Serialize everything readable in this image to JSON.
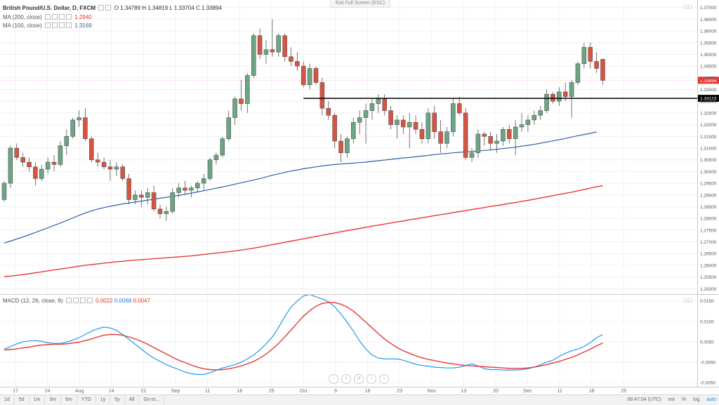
{
  "header": {
    "exit_fullscreen": "Exit Full Screen (ESC)",
    "symbol": "British Pound/U.S. Dollar, D, FXCM",
    "ohlc": {
      "open": "O 1.34789",
      "high": "H 1.34819",
      "low": "L 1.33704",
      "close": "C 1.33894"
    },
    "ma200": {
      "label": "MA (200, close)",
      "value": "1.2940"
    },
    "ma100": {
      "label": "MA (100, close)",
      "value": "1.3169"
    },
    "macd": {
      "label": "MACD (12, 26, close, 9)",
      "hist": "0.0022",
      "macd": "0.0068",
      "signal": "0.0047"
    }
  },
  "colors": {
    "up": "#6ba583",
    "down": "#d75442",
    "ma100": "#2f5fa8",
    "ma200": "#e53935",
    "macd": "#1e9af0",
    "signal": "#e53935",
    "hline": "#000000",
    "price_tag": "#e53935"
  },
  "price_axis": {
    "labels": [
      "1.37000",
      "1.36500",
      "1.36000",
      "1.35500",
      "1.35000",
      "1.34500",
      "1.34000",
      "1.33500",
      "1.33000",
      "1.32500",
      "1.32000",
      "1.31500",
      "1.31000",
      "1.30500",
      "1.30000",
      "1.29500",
      "1.29000",
      "1.28500",
      "1.28000",
      "1.27500",
      "1.27000",
      "1.26500",
      "1.26000",
      "1.25500",
      "1.25000"
    ],
    "current_price": "1.33894",
    "hline_price": "1.33123"
  },
  "macd_axis": {
    "labels": [
      "0.0150",
      "0.0100",
      "0.0050",
      "-0.0000",
      "-0.0050"
    ]
  },
  "time_axis": [
    "17",
    "24",
    "Aug",
    "14",
    "21",
    "Sep",
    "11",
    "18",
    "25",
    "Oct",
    "9",
    "16",
    "23",
    "Nov",
    "13",
    "20",
    "Dec",
    "11",
    "18",
    "25"
  ],
  "bottom_bar": {
    "timeframes": [
      "1d",
      "5d",
      "1m",
      "3m",
      "6m",
      "YTD",
      "1y",
      "5y",
      "All",
      "Go to..."
    ],
    "clock": "08:47:04 (UTC)",
    "options": [
      "ext",
      "%",
      "log",
      "auto"
    ]
  },
  "chart_data": {
    "type": "candlestick",
    "price_range": [
      1.248,
      1.372
    ],
    "macd_range": [
      -0.006,
      0.0165
    ],
    "hline": {
      "price": 1.33123,
      "start_index": 48
    },
    "candles": [
      [
        1.288,
        1.296,
        1.287,
        1.295
      ],
      [
        1.295,
        1.311,
        1.293,
        1.31
      ],
      [
        1.31,
        1.312,
        1.305,
        1.306
      ],
      [
        1.306,
        1.308,
        1.302,
        1.304
      ],
      [
        1.304,
        1.306,
        1.3,
        1.302
      ],
      [
        1.302,
        1.304,
        1.294,
        1.297
      ],
      [
        1.297,
        1.303,
        1.296,
        1.301
      ],
      [
        1.301,
        1.306,
        1.299,
        1.304
      ],
      [
        1.304,
        1.307,
        1.3,
        1.303
      ],
      [
        1.303,
        1.313,
        1.302,
        1.311
      ],
      [
        1.311,
        1.318,
        1.307,
        1.315
      ],
      [
        1.315,
        1.323,
        1.314,
        1.322
      ],
      [
        1.322,
        1.326,
        1.319,
        1.323
      ],
      [
        1.323,
        1.327,
        1.313,
        1.314
      ],
      [
        1.314,
        1.315,
        1.304,
        1.305
      ],
      [
        1.305,
        1.308,
        1.302,
        1.304
      ],
      [
        1.304,
        1.306,
        1.301,
        1.302
      ],
      [
        1.302,
        1.305,
        1.296,
        1.301
      ],
      [
        1.301,
        1.304,
        1.298,
        1.302
      ],
      [
        1.302,
        1.303,
        1.296,
        1.297
      ],
      [
        1.297,
        1.299,
        1.286,
        1.288
      ],
      [
        1.288,
        1.292,
        1.286,
        1.29
      ],
      [
        1.29,
        1.292,
        1.285,
        1.289
      ],
      [
        1.289,
        1.293,
        1.286,
        1.291
      ],
      [
        1.291,
        1.294,
        1.283,
        1.284
      ],
      [
        1.284,
        1.286,
        1.28,
        1.282
      ],
      [
        1.282,
        1.285,
        1.279,
        1.283
      ],
      [
        1.283,
        1.293,
        1.282,
        1.291
      ],
      [
        1.291,
        1.295,
        1.289,
        1.293
      ],
      [
        1.293,
        1.296,
        1.29,
        1.292
      ],
      [
        1.292,
        1.294,
        1.289,
        1.293
      ],
      [
        1.293,
        1.296,
        1.291,
        1.295
      ],
      [
        1.295,
        1.299,
        1.292,
        1.297
      ],
      [
        1.297,
        1.306,
        1.296,
        1.305
      ],
      [
        1.305,
        1.308,
        1.303,
        1.307
      ],
      [
        1.307,
        1.315,
        1.306,
        1.314
      ],
      [
        1.314,
        1.326,
        1.313,
        1.323
      ],
      [
        1.323,
        1.332,
        1.32,
        1.331
      ],
      [
        1.331,
        1.339,
        1.326,
        1.329
      ],
      [
        1.329,
        1.342,
        1.325,
        1.341
      ],
      [
        1.341,
        1.359,
        1.34,
        1.358
      ],
      [
        1.358,
        1.361,
        1.348,
        1.35
      ],
      [
        1.35,
        1.356,
        1.346,
        1.352
      ],
      [
        1.352,
        1.365,
        1.349,
        1.351
      ],
      [
        1.351,
        1.359,
        1.349,
        1.358
      ],
      [
        1.358,
        1.359,
        1.347,
        1.349
      ],
      [
        1.349,
        1.353,
        1.345,
        1.347
      ],
      [
        1.347,
        1.351,
        1.343,
        1.345
      ],
      [
        1.345,
        1.347,
        1.336,
        1.337
      ],
      [
        1.337,
        1.346,
        1.335,
        1.344
      ],
      [
        1.344,
        1.345,
        1.337,
        1.338
      ],
      [
        1.338,
        1.34,
        1.324,
        1.327
      ],
      [
        1.327,
        1.33,
        1.322,
        1.324
      ],
      [
        1.324,
        1.325,
        1.31,
        1.313
      ],
      [
        1.313,
        1.316,
        1.304,
        1.308
      ],
      [
        1.308,
        1.315,
        1.306,
        1.314
      ],
      [
        1.314,
        1.323,
        1.312,
        1.321
      ],
      [
        1.321,
        1.326,
        1.316,
        1.323
      ],
      [
        1.323,
        1.329,
        1.312,
        1.326
      ],
      [
        1.326,
        1.331,
        1.322,
        1.329
      ],
      [
        1.329,
        1.333,
        1.325,
        1.331
      ],
      [
        1.331,
        1.333,
        1.324,
        1.326
      ],
      [
        1.326,
        1.328,
        1.318,
        1.32
      ],
      [
        1.32,
        1.324,
        1.314,
        1.322
      ],
      [
        1.322,
        1.324,
        1.316,
        1.319
      ],
      [
        1.319,
        1.325,
        1.31,
        1.321
      ],
      [
        1.321,
        1.324,
        1.316,
        1.318
      ],
      [
        1.318,
        1.321,
        1.312,
        1.314
      ],
      [
        1.314,
        1.327,
        1.312,
        1.325
      ],
      [
        1.325,
        1.328,
        1.314,
        1.317
      ],
      [
        1.317,
        1.322,
        1.308,
        1.312
      ],
      [
        1.312,
        1.319,
        1.31,
        1.317
      ],
      [
        1.317,
        1.331,
        1.315,
        1.329
      ],
      [
        1.329,
        1.332,
        1.324,
        1.325
      ],
      [
        1.325,
        1.327,
        1.305,
        1.306
      ],
      [
        1.306,
        1.31,
        1.304,
        1.308
      ],
      [
        1.308,
        1.318,
        1.306,
        1.316
      ],
      [
        1.316,
        1.317,
        1.311,
        1.315
      ],
      [
        1.315,
        1.317,
        1.309,
        1.312
      ],
      [
        1.312,
        1.316,
        1.308,
        1.313
      ],
      [
        1.313,
        1.319,
        1.311,
        1.318
      ],
      [
        1.318,
        1.32,
        1.312,
        1.314
      ],
      [
        1.314,
        1.322,
        1.307,
        1.319
      ],
      [
        1.319,
        1.325,
        1.317,
        1.32
      ],
      [
        1.32,
        1.324,
        1.317,
        1.322
      ],
      [
        1.322,
        1.326,
        1.32,
        1.324
      ],
      [
        1.324,
        1.328,
        1.322,
        1.326
      ],
      [
        1.326,
        1.335,
        1.325,
        1.333
      ],
      [
        1.333,
        1.334,
        1.329,
        1.33
      ],
      [
        1.33,
        1.336,
        1.328,
        1.334
      ],
      [
        1.334,
        1.338,
        1.33,
        1.332
      ],
      [
        1.332,
        1.339,
        1.323,
        1.338
      ],
      [
        1.338,
        1.347,
        1.337,
        1.346
      ],
      [
        1.346,
        1.355,
        1.344,
        1.353
      ],
      [
        1.353,
        1.355,
        1.344,
        1.347
      ],
      [
        1.347,
        1.351,
        1.342,
        1.344
      ],
      [
        1.3479,
        1.3482,
        1.337,
        1.3389
      ]
    ],
    "ma100": [
      1.2695,
      1.2703,
      1.2712,
      1.2721,
      1.273,
      1.274,
      1.275,
      1.276,
      1.277,
      1.278,
      1.2791,
      1.2802,
      1.2813,
      1.2823,
      1.2832,
      1.284,
      1.2846,
      1.2852,
      1.2857,
      1.2862,
      1.2866,
      1.287,
      1.2874,
      1.2878,
      1.2882,
      1.2886,
      1.289,
      1.2894,
      1.2898,
      1.2903,
      1.2908,
      1.2913,
      1.2918,
      1.2923,
      1.2929,
      1.2934,
      1.294,
      1.2946,
      1.2952,
      1.2958,
      1.2964,
      1.297,
      1.2977,
      1.2984,
      1.299,
      1.2996,
      1.3002,
      1.3007,
      1.3012,
      1.3016,
      1.302,
      1.3024,
      1.3027,
      1.303,
      1.3032,
      1.3034,
      1.3036,
      1.3038,
      1.304,
      1.3043,
      1.3046,
      1.3049,
      1.3052,
      1.3055,
      1.3058,
      1.306,
      1.3063,
      1.3066,
      1.3069,
      1.3072,
      1.3075,
      1.3077,
      1.308,
      1.3082,
      1.3084,
      1.3086,
      1.3088,
      1.309,
      1.3092,
      1.3095,
      1.3098,
      1.3101,
      1.3104,
      1.3108,
      1.3112,
      1.3116,
      1.3121,
      1.3126,
      1.3131,
      1.3136,
      1.3141,
      1.3147,
      1.3153,
      1.3158,
      1.3163,
      1.3169
    ],
    "ma200": [
      1.2552,
      1.2554,
      1.2557,
      1.256,
      1.2564,
      1.2568,
      1.2572,
      1.2576,
      1.258,
      1.2584,
      1.2588,
      1.2592,
      1.2596,
      1.26,
      1.2603,
      1.2606,
      1.2609,
      1.2612,
      1.2615,
      1.2617,
      1.262,
      1.2622,
      1.2624,
      1.2626,
      1.2628,
      1.263,
      1.2632,
      1.2634,
      1.2636,
      1.2638,
      1.264,
      1.2643,
      1.2646,
      1.2649,
      1.2652,
      1.2655,
      1.2658,
      1.2661,
      1.2665,
      1.2669,
      1.2673,
      1.2678,
      1.2683,
      1.2688,
      1.2693,
      1.2698,
      1.2703,
      1.2708,
      1.2713,
      1.2718,
      1.2723,
      1.2728,
      1.2733,
      1.2738,
      1.2743,
      1.2748,
      1.2752,
      1.2757,
      1.2762,
      1.2767,
      1.2771,
      1.2776,
      1.278,
      1.2785,
      1.2789,
      1.2794,
      1.2798,
      1.2803,
      1.2807,
      1.2812,
      1.2816,
      1.282,
      1.2825,
      1.2829,
      1.2833,
      1.2838,
      1.2842,
      1.2846,
      1.2851,
      1.2855,
      1.2859,
      1.2864,
      1.2868,
      1.2873,
      1.2877,
      1.2882,
      1.2887,
      1.2892,
      1.2897,
      1.2902,
      1.2907,
      1.2912,
      1.2918,
      1.2923,
      1.2929,
      1.2935,
      1.294
    ],
    "macd": [
      0.0032,
      0.0038,
      0.0045,
      0.005,
      0.0052,
      0.0053,
      0.0051,
      0.0048,
      0.0046,
      0.0046,
      0.0049,
      0.0054,
      0.006,
      0.0068,
      0.0076,
      0.0082,
      0.0086,
      0.0084,
      0.0078,
      0.0068,
      0.0056,
      0.0044,
      0.0032,
      0.002,
      0.001,
      0.0002,
      -0.0006,
      -0.0012,
      -0.0018,
      -0.0024,
      -0.0028,
      -0.003,
      -0.003,
      -0.0026,
      -0.002,
      -0.0014,
      -0.001,
      -0.0006,
      0.0,
      0.0008,
      0.0018,
      0.003,
      0.0045,
      0.0062,
      0.0085,
      0.0112,
      0.0135,
      0.015,
      0.0162,
      0.0166,
      0.016,
      0.0155,
      0.0148,
      0.0136,
      0.0118,
      0.0098,
      0.0076,
      0.0052,
      0.0032,
      0.0018,
      0.001,
      0.0008,
      0.0008,
      0.0008,
      0.0005,
      0.0,
      -0.0005,
      -0.0008,
      -0.001,
      -0.0012,
      -0.0013,
      -0.0014,
      -0.0014,
      -0.0012,
      -0.0008,
      -0.0004,
      -0.0009,
      -0.0016,
      -0.0018,
      -0.0018,
      -0.0019,
      -0.0019,
      -0.0019,
      -0.0018,
      -0.0016,
      -0.0012,
      -0.0006,
      0.0,
      0.0005,
      0.0014,
      0.0022,
      0.0028,
      0.0032,
      0.0038,
      0.0048,
      0.006,
      0.0068
    ],
    "signal": [
      0.003,
      0.0031,
      0.0033,
      0.0035,
      0.0037,
      0.004,
      0.0042,
      0.0043,
      0.0044,
      0.0044,
      0.0045,
      0.0047,
      0.0049,
      0.0053,
      0.0057,
      0.0062,
      0.0066,
      0.0068,
      0.0068,
      0.0066,
      0.0062,
      0.0057,
      0.0051,
      0.0044,
      0.0036,
      0.0028,
      0.002,
      0.0012,
      0.0005,
      -0.0001,
      -0.0007,
      -0.0012,
      -0.0016,
      -0.0018,
      -0.0019,
      -0.0018,
      -0.0016,
      -0.0013,
      -0.0009,
      -0.0004,
      0.0002,
      0.001,
      0.002,
      0.0032,
      0.0046,
      0.0062,
      0.0079,
      0.0096,
      0.0113,
      0.0126,
      0.0137,
      0.0144,
      0.0146,
      0.0146,
      0.0142,
      0.0135,
      0.0125,
      0.0112,
      0.0098,
      0.0084,
      0.007,
      0.0057,
      0.0046,
      0.0036,
      0.0028,
      0.0022,
      0.0016,
      0.0011,
      0.0007,
      0.0004,
      0.0001,
      -0.0002,
      -0.0004,
      -0.0006,
      -0.0008,
      -0.0009,
      -0.001,
      -0.0011,
      -0.0012,
      -0.0013,
      -0.0014,
      -0.0015,
      -0.0015,
      -0.0015,
      -0.0014,
      -0.0012,
      -0.0009,
      -0.0006,
      -0.0002,
      0.0002,
      0.0007,
      0.0012,
      0.0018,
      0.0025,
      0.0032,
      0.004,
      0.0047
    ]
  }
}
